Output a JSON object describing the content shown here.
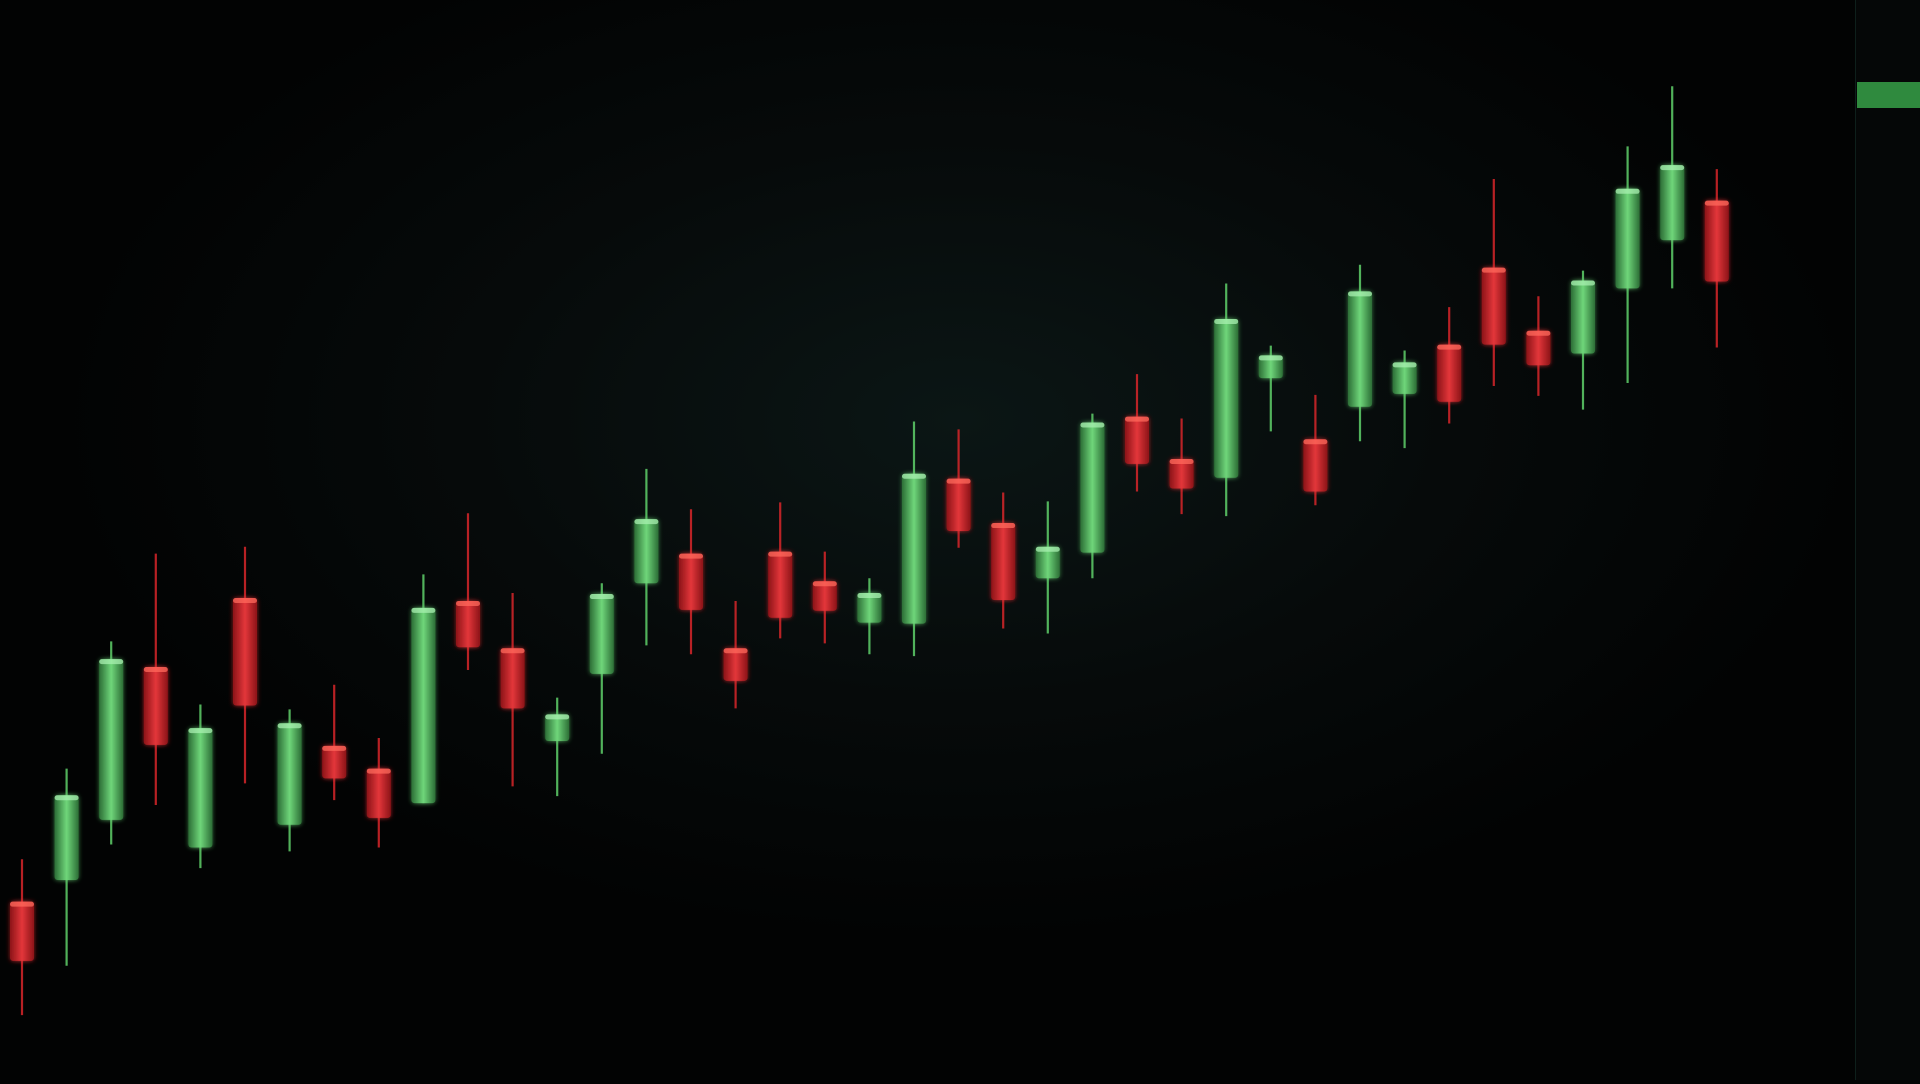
{
  "colors": {
    "background": "#030404",
    "up": "#5fd06a",
    "up_body": "#3f9e4c",
    "down": "#d8262a",
    "down_body": "#b31b1f",
    "accent": "#4cb05a"
  },
  "chart_data": {
    "type": "candlestick",
    "title": "",
    "xlabel": "",
    "ylabel": "",
    "ylim": [
      0,
      100
    ],
    "grid": false,
    "legend": "none",
    "price_axis": {
      "ticks": [
        "",
        "",
        "",
        "",
        "",
        "",
        "",
        "",
        "",
        "",
        "",
        "",
        "",
        "",
        "",
        ""
      ],
      "current_price_label": ""
    },
    "candles": [
      {
        "o": 12.0,
        "h": 16.3,
        "l": 0.5,
        "c": 6.0
      },
      {
        "o": 14.2,
        "h": 25.5,
        "l": 5.5,
        "c": 22.8
      },
      {
        "o": 20.3,
        "h": 38.4,
        "l": 17.8,
        "c": 36.6
      },
      {
        "o": 35.8,
        "h": 47.3,
        "l": 21.8,
        "c": 27.9
      },
      {
        "o": 17.5,
        "h": 32.0,
        "l": 15.4,
        "c": 29.6
      },
      {
        "o": 42.8,
        "h": 48.0,
        "l": 24.0,
        "c": 31.9
      },
      {
        "o": 19.8,
        "h": 31.5,
        "l": 17.1,
        "c": 30.1
      },
      {
        "o": 27.8,
        "h": 34.0,
        "l": 22.3,
        "c": 24.5
      },
      {
        "o": 25.5,
        "h": 28.6,
        "l": 17.5,
        "c": 20.5
      },
      {
        "o": 22.0,
        "h": 45.2,
        "l": 22.0,
        "c": 41.8
      },
      {
        "o": 42.5,
        "h": 51.4,
        "l": 35.5,
        "c": 37.8
      },
      {
        "o": 37.7,
        "h": 43.3,
        "l": 23.7,
        "c": 31.6
      },
      {
        "o": 28.3,
        "h": 32.7,
        "l": 22.7,
        "c": 31.0
      },
      {
        "o": 35.1,
        "h": 44.3,
        "l": 27.0,
        "c": 43.2
      },
      {
        "o": 44.3,
        "h": 55.9,
        "l": 38.0,
        "c": 50.8
      },
      {
        "o": 47.3,
        "h": 51.8,
        "l": 37.1,
        "c": 41.6
      },
      {
        "o": 37.7,
        "h": 42.5,
        "l": 31.6,
        "c": 34.4
      },
      {
        "o": 47.5,
        "h": 52.5,
        "l": 38.7,
        "c": 40.8
      },
      {
        "o": 44.5,
        "h": 47.5,
        "l": 38.2,
        "c": 41.5
      },
      {
        "o": 40.3,
        "h": 44.8,
        "l": 37.1,
        "c": 43.3
      },
      {
        "o": 40.2,
        "h": 60.7,
        "l": 36.9,
        "c": 55.4
      },
      {
        "o": 54.9,
        "h": 59.9,
        "l": 47.9,
        "c": 49.6
      },
      {
        "o": 50.4,
        "h": 53.5,
        "l": 39.7,
        "c": 42.6
      },
      {
        "o": 44.8,
        "h": 52.6,
        "l": 39.2,
        "c": 48.0
      },
      {
        "o": 47.4,
        "h": 61.5,
        "l": 44.8,
        "c": 60.6
      },
      {
        "o": 61.2,
        "h": 65.5,
        "l": 53.6,
        "c": 56.4
      },
      {
        "o": 56.9,
        "h": 61.0,
        "l": 51.3,
        "c": 53.9
      },
      {
        "o": 55.0,
        "h": 74.7,
        "l": 51.1,
        "c": 71.1
      },
      {
        "o": 65.1,
        "h": 68.4,
        "l": 59.7,
        "c": 67.4
      },
      {
        "o": 58.9,
        "h": 63.4,
        "l": 52.2,
        "c": 53.6
      },
      {
        "o": 62.2,
        "h": 76.6,
        "l": 58.7,
        "c": 73.9
      },
      {
        "o": 63.5,
        "h": 67.9,
        "l": 58.0,
        "c": 66.7
      },
      {
        "o": 68.5,
        "h": 72.3,
        "l": 60.5,
        "c": 62.7
      },
      {
        "o": 76.3,
        "h": 85.3,
        "l": 64.3,
        "c": 68.5
      },
      {
        "o": 69.9,
        "h": 73.4,
        "l": 63.3,
        "c": 66.4
      },
      {
        "o": 67.6,
        "h": 76.0,
        "l": 61.9,
        "c": 75.0
      },
      {
        "o": 74.2,
        "h": 88.6,
        "l": 64.6,
        "c": 84.3
      },
      {
        "o": 79.1,
        "h": 94.7,
        "l": 74.2,
        "c": 86.7
      },
      {
        "o": 83.1,
        "h": 86.3,
        "l": 68.2,
        "c": 74.9
      }
    ]
  }
}
